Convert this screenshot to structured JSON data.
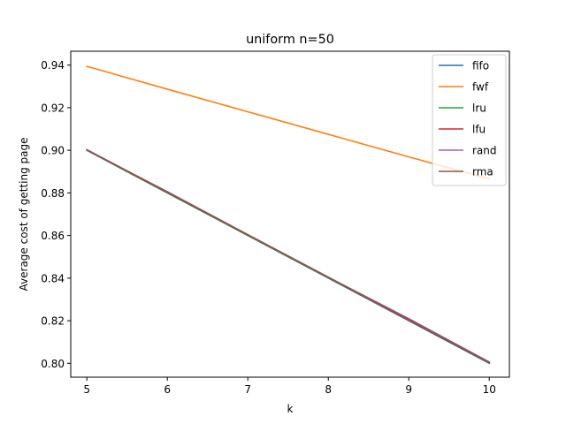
{
  "chart_data": {
    "type": "line",
    "title": "uniform n=50",
    "xlabel": "k",
    "ylabel": "Average cost of getting page",
    "xlim": [
      4.8,
      10.25
    ],
    "ylim": [
      0.7935,
      0.9465
    ],
    "xticks": [
      5,
      6,
      7,
      8,
      9,
      10
    ],
    "yticks": [
      0.8,
      0.82,
      0.84,
      0.86,
      0.88,
      0.9,
      0.92,
      0.94
    ],
    "grid": false,
    "legend": "top-right",
    "x": [
      5,
      6,
      7,
      8,
      9,
      10
    ],
    "series": [
      {
        "name": "fifo",
        "color": "#1f77b4",
        "values": [
          0.9,
          0.88,
          0.86,
          0.84,
          0.82,
          0.8
        ]
      },
      {
        "name": "fwf",
        "color": "#ff7f0e",
        "values": [
          0.9394,
          0.9287,
          0.9181,
          0.9075,
          0.8969,
          0.8866
        ]
      },
      {
        "name": "lru",
        "color": "#2ca02c",
        "values": [
          0.9001,
          0.8801,
          0.8601,
          0.8402,
          0.8203,
          0.8003
        ]
      },
      {
        "name": "lfu",
        "color": "#d62728",
        "values": [
          0.9002,
          0.8803,
          0.8603,
          0.8404,
          0.8203,
          0.8004
        ]
      },
      {
        "name": "rand",
        "color": "#9467bd",
        "values": [
          0.9001,
          0.8806,
          0.8604,
          0.8404,
          0.821,
          0.8006
        ]
      },
      {
        "name": "rma",
        "color": "#8c564b",
        "values": [
          0.9003,
          0.8804,
          0.8604,
          0.8404,
          0.8206,
          0.8005
        ]
      }
    ]
  }
}
